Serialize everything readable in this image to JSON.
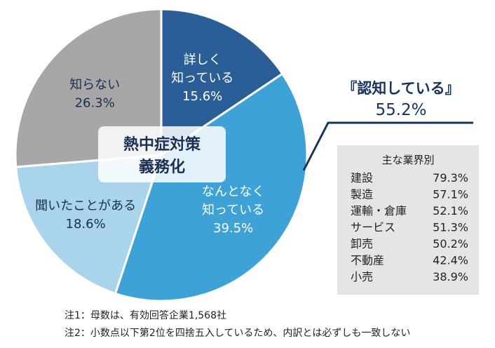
{
  "chart_data": {
    "type": "pie",
    "title": "熱中症対策\n義務化",
    "slices": [
      {
        "label": "詳しく\n知っている",
        "value": 15.6,
        "value_text": "15.6%",
        "color": "#2b5d97",
        "text_color": "#ffffff"
      },
      {
        "label": "なんとなく\n知っている",
        "value": 39.5,
        "value_text": "39.5%",
        "color": "#3fa2d6",
        "text_color": "#ffffff"
      },
      {
        "label": "聞いたことがある",
        "value": 18.6,
        "value_text": "18.6%",
        "color": "#a9d4ec",
        "text_color": "#1a2f52"
      },
      {
        "label": "知らない",
        "value": 26.3,
        "value_text": "26.3%",
        "color": "#a7a7a7",
        "text_color": "#1a2f52"
      }
    ],
    "callout": {
      "title": "『認知している』",
      "value": "55.2%",
      "color": "#16335e"
    },
    "industry_table": {
      "header": "主な業界別",
      "rows": [
        {
          "name": "建設",
          "value": "79.3%"
        },
        {
          "name": "製造",
          "value": "57.1%"
        },
        {
          "name": "運輸・倉庫",
          "value": "52.1%"
        },
        {
          "name": "サービス",
          "value": "51.3%"
        },
        {
          "name": "卸売",
          "value": "50.2%"
        },
        {
          "name": "不動産",
          "value": "42.4%"
        },
        {
          "name": "小売",
          "value": "38.9%"
        }
      ]
    },
    "notes": [
      "注1：母数は、有効回答企業1,568社",
      "注2：小数点以下第2位を四捨五入しているため、内訳とは必ずしも一致しない"
    ]
  }
}
